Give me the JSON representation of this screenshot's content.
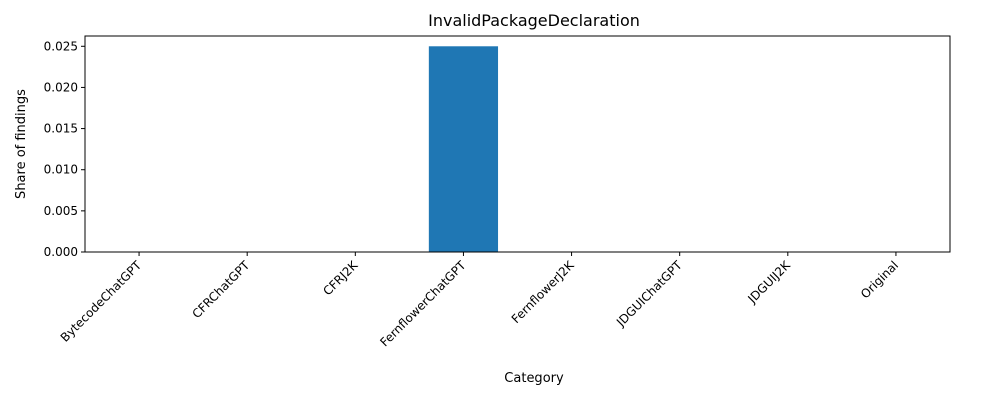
{
  "chart_data": {
    "type": "bar",
    "title": "InvalidPackageDeclaration",
    "xlabel": "Category",
    "ylabel": "Share of findings",
    "categories": [
      "BytecodeChatGPT",
      "CFRChatGPT",
      "CFRJ2K",
      "FernflowerChatGPT",
      "FernflowerJ2K",
      "JDGUIChatGPT",
      "JDGUIJ2K",
      "Original"
    ],
    "values": [
      0,
      0,
      0,
      0.025,
      0,
      0,
      0,
      0
    ],
    "ylim": [
      0,
      0.02625
    ],
    "yticks": [
      "0.000",
      "0.005",
      "0.010",
      "0.015",
      "0.020",
      "0.025"
    ],
    "bar_color": "#1f77b4",
    "grid": false,
    "legend": "none"
  }
}
